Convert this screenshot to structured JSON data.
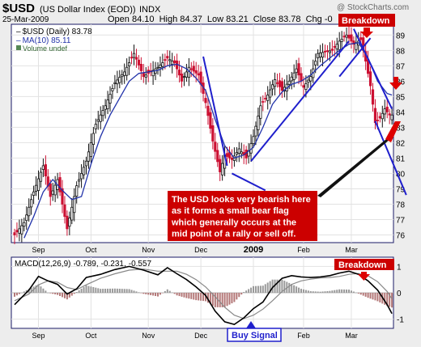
{
  "header": {
    "ticker": "$USD",
    "name": "(US Dollar Index (EOD))",
    "exchange": "INDX",
    "watermark": "@ StockCharts.com",
    "date": "25-Mar-2009",
    "quote": "Open 84.10  High 84.37  Low 83.21  Close 83.78  Chg -0"
  },
  "legend": {
    "price": "$USD (Daily) 83.78",
    "ma": "MA(10) 85.11",
    "volume": "Volume undef"
  },
  "macd_label": {
    "name": "MACD(12,26,9)",
    "v1": "-0.789,",
    "v2": "-0.231,",
    "v3": "-0.557"
  },
  "annotations": {
    "breakdown_top": "Breakdown",
    "breakdown_macd": "Breakdown",
    "buy_signal": "Buy Signal",
    "note_lines": [
      "The USD looks very bearish here",
      "as it forms a small bear flag",
      "which generally occurs at the",
      "mid point of a rally or sell off."
    ]
  },
  "colors": {
    "frame": "#1a1a66",
    "panel_bg": "#ffffff",
    "page_bg": "#ededed",
    "up": "#111111",
    "down": "#cc1133",
    "ma": "#2233aa",
    "trend": "#1f1fcc",
    "annot_bg": "#cc0000",
    "macd_line": "#000000",
    "signal_line": "#888888",
    "hist_pos": "#999999",
    "hist_neg": "#b37777"
  },
  "chart_data": {
    "type": "candlestick",
    "y_axis": {
      "min": 75.5,
      "max": 89.7,
      "ticks": [
        76,
        77,
        78,
        79,
        80,
        81,
        82,
        83,
        84,
        85,
        86,
        87,
        88,
        89
      ]
    },
    "x_labels": [
      {
        "label": "Sep",
        "bar": 10
      },
      {
        "label": "Oct",
        "bar": 32
      },
      {
        "label": "Nov",
        "bar": 56
      },
      {
        "label": "Dec",
        "bar": 78
      },
      {
        "label": "2009",
        "bar": 100
      },
      {
        "label": "Feb",
        "bar": 121
      },
      {
        "label": "Mar",
        "bar": 141
      }
    ],
    "close_path": [
      [
        0,
        76.0
      ],
      [
        4,
        76.8
      ],
      [
        8,
        78.8
      ],
      [
        12,
        80.5
      ],
      [
        15,
        78.5
      ],
      [
        18,
        79.6
      ],
      [
        22,
        76.4
      ],
      [
        26,
        79.2
      ],
      [
        30,
        80.8
      ],
      [
        34,
        83.2
      ],
      [
        38,
        84.4
      ],
      [
        42,
        85.9
      ],
      [
        46,
        86.6
      ],
      [
        50,
        87.8
      ],
      [
        54,
        86.3
      ],
      [
        57,
        86.6
      ],
      [
        60,
        86.9
      ],
      [
        64,
        87.5
      ],
      [
        67,
        87.2
      ],
      [
        70,
        86.0
      ],
      [
        73,
        86.9
      ],
      [
        77,
        86.4
      ],
      [
        80,
        84.6
      ],
      [
        83,
        82.1
      ],
      [
        86,
        80.1
      ],
      [
        88,
        81.2
      ],
      [
        91,
        80.9
      ],
      [
        94,
        81.6
      ],
      [
        97,
        81.0
      ],
      [
        100,
        82.4
      ],
      [
        103,
        84.4
      ],
      [
        106,
        85.1
      ],
      [
        109,
        86.1
      ],
      [
        112,
        85.4
      ],
      [
        115,
        86.0
      ],
      [
        118,
        86.8
      ],
      [
        121,
        85.6
      ],
      [
        124,
        86.3
      ],
      [
        127,
        87.8
      ],
      [
        130,
        87.9
      ],
      [
        133,
        88.0
      ],
      [
        136,
        88.6
      ],
      [
        139,
        89.0
      ],
      [
        142,
        88.4
      ],
      [
        145,
        88.7
      ],
      [
        147,
        87.3
      ],
      [
        149,
        85.7
      ],
      [
        151,
        83.3
      ],
      [
        153,
        83.6
      ],
      [
        155,
        84.2
      ],
      [
        157,
        83.8
      ],
      [
        158,
        83.8
      ]
    ],
    "ma_path": [
      [
        4,
        75.8
      ],
      [
        8,
        77.2
      ],
      [
        12,
        78.8
      ],
      [
        16,
        79.6
      ],
      [
        20,
        78.9
      ],
      [
        24,
        78.3
      ],
      [
        28,
        78.5
      ],
      [
        32,
        80.6
      ],
      [
        36,
        82.4
      ],
      [
        40,
        83.8
      ],
      [
        44,
        84.9
      ],
      [
        48,
        86.0
      ],
      [
        52,
        86.5
      ],
      [
        56,
        86.6
      ],
      [
        60,
        86.7
      ],
      [
        64,
        87.0
      ],
      [
        68,
        87.1
      ],
      [
        72,
        86.8
      ],
      [
        76,
        86.2
      ],
      [
        80,
        85.4
      ],
      [
        84,
        83.5
      ],
      [
        88,
        81.8
      ],
      [
        92,
        81.0
      ],
      [
        96,
        81.2
      ],
      [
        100,
        81.7
      ],
      [
        104,
        83.0
      ],
      [
        108,
        84.5
      ],
      [
        112,
        85.3
      ],
      [
        116,
        85.8
      ],
      [
        120,
        86.0
      ],
      [
        124,
        86.4
      ],
      [
        128,
        87.0
      ],
      [
        132,
        87.5
      ],
      [
        136,
        88.0
      ],
      [
        140,
        88.4
      ],
      [
        144,
        88.5
      ],
      [
        148,
        87.5
      ],
      [
        152,
        86.0
      ],
      [
        156,
        85.2
      ],
      [
        158,
        85.1
      ]
    ],
    "trendlines": [
      [
        [
          79,
          87.6
        ],
        [
          89,
          80.5
        ]
      ],
      [
        [
          91,
          80.0
        ],
        [
          105,
          78.9
        ]
      ],
      [
        [
          99,
          80.8
        ],
        [
          140,
          88.6
        ]
      ],
      [
        [
          136,
          86.3
        ],
        [
          149,
          88.8
        ]
      ],
      [
        [
          142,
          89.4
        ],
        [
          158,
          84.2
        ]
      ],
      [
        [
          151,
          83.4
        ],
        [
          164,
          78.6
        ]
      ]
    ],
    "macd": {
      "y_min": -1.35,
      "y_max": 1.35,
      "ticks": [
        -1,
        0,
        1
      ],
      "line": [
        [
          0,
          -0.45
        ],
        [
          6,
          0.1
        ],
        [
          10,
          0.62
        ],
        [
          14,
          0.45
        ],
        [
          18,
          0.32
        ],
        [
          22,
          -0.05
        ],
        [
          26,
          0.15
        ],
        [
          30,
          0.58
        ],
        [
          36,
          0.7
        ],
        [
          42,
          0.88
        ],
        [
          48,
          1.0
        ],
        [
          54,
          0.86
        ],
        [
          60,
          0.68
        ],
        [
          64,
          0.95
        ],
        [
          68,
          0.72
        ],
        [
          72,
          0.5
        ],
        [
          76,
          0.22
        ],
        [
          80,
          -0.1
        ],
        [
          84,
          -0.7
        ],
        [
          88,
          -1.1
        ],
        [
          92,
          -1.2
        ],
        [
          96,
          -0.95
        ],
        [
          100,
          -0.6
        ],
        [
          104,
          -0.35
        ],
        [
          108,
          0.2
        ],
        [
          112,
          0.55
        ],
        [
          116,
          0.65
        ],
        [
          120,
          0.6
        ],
        [
          124,
          0.58
        ],
        [
          128,
          0.6
        ],
        [
          132,
          0.65
        ],
        [
          136,
          0.75
        ],
        [
          140,
          0.82
        ],
        [
          144,
          0.7
        ],
        [
          148,
          0.45
        ],
        [
          152,
          0.1
        ],
        [
          156,
          -0.45
        ],
        [
          158,
          -0.79
        ]
      ],
      "signal": [
        [
          0,
          -0.3
        ],
        [
          6,
          -0.05
        ],
        [
          10,
          0.3
        ],
        [
          14,
          0.45
        ],
        [
          18,
          0.4
        ],
        [
          22,
          0.2
        ],
        [
          26,
          0.12
        ],
        [
          30,
          0.3
        ],
        [
          36,
          0.55
        ],
        [
          42,
          0.72
        ],
        [
          48,
          0.86
        ],
        [
          54,
          0.9
        ],
        [
          60,
          0.82
        ],
        [
          64,
          0.82
        ],
        [
          68,
          0.82
        ],
        [
          72,
          0.7
        ],
        [
          76,
          0.5
        ],
        [
          80,
          0.22
        ],
        [
          84,
          -0.15
        ],
        [
          88,
          -0.55
        ],
        [
          92,
          -0.85
        ],
        [
          96,
          -0.98
        ],
        [
          100,
          -0.85
        ],
        [
          104,
          -0.62
        ],
        [
          108,
          -0.3
        ],
        [
          112,
          0.05
        ],
        [
          116,
          0.32
        ],
        [
          120,
          0.45
        ],
        [
          124,
          0.52
        ],
        [
          128,
          0.56
        ],
        [
          132,
          0.58
        ],
        [
          136,
          0.62
        ],
        [
          140,
          0.7
        ],
        [
          144,
          0.73
        ],
        [
          148,
          0.64
        ],
        [
          152,
          0.42
        ],
        [
          156,
          0.05
        ],
        [
          158,
          -0.23
        ]
      ]
    }
  }
}
